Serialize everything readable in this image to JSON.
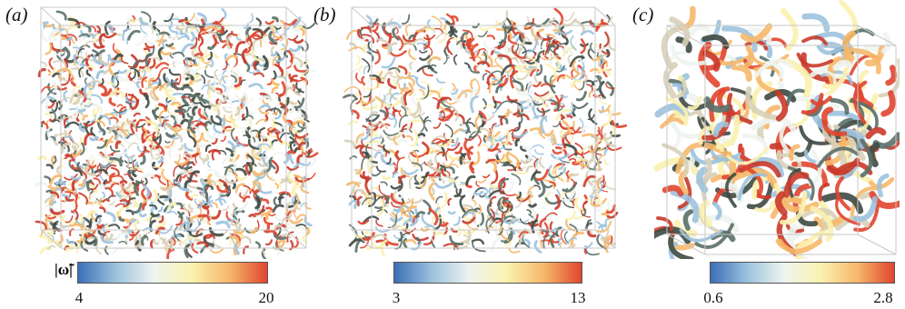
{
  "panels": [
    {
      "label": "(a)",
      "cbar_min": "4",
      "cbar_max": "20",
      "cbar_title": "|ω̃|"
    },
    {
      "label": "(b)",
      "cbar_min": "3",
      "cbar_max": "13"
    },
    {
      "label": "(c)",
      "cbar_min": "0.6",
      "cbar_max": "2.8"
    }
  ],
  "colormap": [
    "#3b6fb6",
    "#9cc2de",
    "#eef4ef",
    "#fbf1b0",
    "#f6b86a",
    "#e0452f"
  ],
  "colors": {
    "box_edge": "#c8c8c8",
    "bg": "#ffffff"
  }
}
